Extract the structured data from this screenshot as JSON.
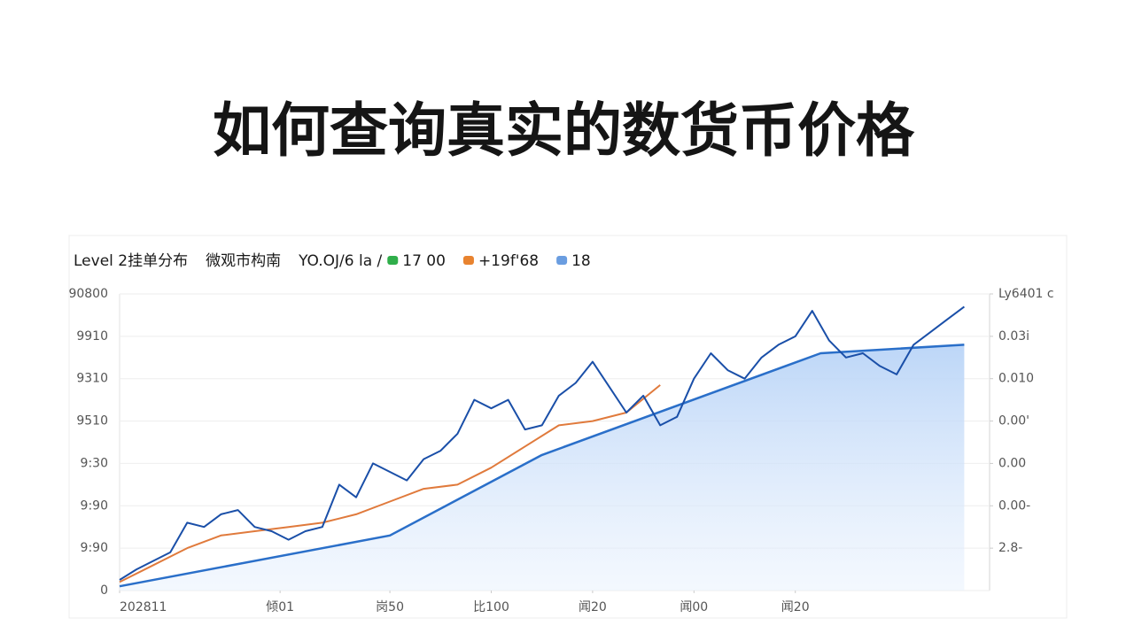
{
  "chart_data": {
    "type": "line",
    "title": "如何查询真实的数货币价格",
    "header": [
      "Level 2挂单分布",
      "微观市构南",
      "YO.OJ/6 la /"
    ],
    "legend": [
      {
        "label": "17  00",
        "color": "#2fae4a"
      },
      {
        "label": "+19f'68",
        "color": "#e8832f"
      },
      {
        "label": "18",
        "color": "#6a9de0"
      }
    ],
    "xlim": [
      0,
      103
    ],
    "xticks": [
      {
        "value": 0,
        "label": "202811"
      },
      {
        "value": 19,
        "label": "倾01"
      },
      {
        "value": 32,
        "label": "岗50"
      },
      {
        "value": 44,
        "label": "比100"
      },
      {
        "value": 56,
        "label": "闻20"
      },
      {
        "value": 68,
        "label": "闻00"
      },
      {
        "value": 80,
        "label": "闻20"
      }
    ],
    "ylim": [
      0,
      7
    ],
    "yticks": [
      {
        "value": 0,
        "label": "0"
      },
      {
        "value": 1,
        "label": "9:90"
      },
      {
        "value": 2,
        "label": "9:90"
      },
      {
        "value": 3,
        "label": "9:30"
      },
      {
        "value": 4,
        "label": "9510"
      },
      {
        "value": 5,
        "label": "9310"
      },
      {
        "value": 6,
        "label": "9910"
      },
      {
        "value": 7,
        "label": "90800"
      }
    ],
    "y2lim": [
      0,
      7
    ],
    "y2ticks": [
      {
        "value": 1,
        "label": "2.8-"
      },
      {
        "value": 2,
        "label": "0.00-"
      },
      {
        "value": 3,
        "label": "0.00"
      },
      {
        "value": 4,
        "label": "0.00'"
      },
      {
        "value": 5,
        "label": "0.010"
      },
      {
        "value": 6,
        "label": "0.03i"
      },
      {
        "value": 7,
        "label": "Ly6401 c"
      }
    ],
    "grid": true,
    "series": [
      {
        "name": null,
        "color": "#2a6fc9",
        "fill": true,
        "x": [
          0,
          32,
          50,
          83,
          100
        ],
        "values": [
          0.1,
          1.3,
          3.2,
          5.6,
          5.8
        ]
      },
      {
        "name": null,
        "color": "#e07a3c",
        "fill": false,
        "x": [
          0,
          4,
          8,
          12,
          16,
          20,
          24,
          28,
          32,
          36,
          40,
          44,
          48,
          52,
          56,
          60,
          64
        ],
        "values": [
          0.2,
          0.6,
          1.0,
          1.3,
          1.4,
          1.5,
          1.6,
          1.8,
          2.1,
          2.4,
          2.5,
          2.9,
          3.4,
          3.9,
          4.0,
          4.2,
          4.85
        ]
      },
      {
        "name": null,
        "color": "#1a4fa8",
        "fill": false,
        "x": [
          0,
          2,
          4,
          6,
          8,
          10,
          12,
          14,
          16,
          18,
          20,
          22,
          24,
          26,
          28,
          30,
          32,
          34,
          36,
          38,
          40,
          42,
          44,
          46,
          48,
          50,
          52,
          54,
          56,
          58,
          60,
          62,
          64,
          66,
          68,
          70,
          72,
          74,
          76,
          78,
          80,
          82,
          84,
          86,
          88,
          90,
          92,
          94,
          96,
          98,
          100
        ],
        "values": [
          0.25,
          0.5,
          0.7,
          0.9,
          1.6,
          1.5,
          1.8,
          1.9,
          1.5,
          1.4,
          1.2,
          1.4,
          1.5,
          2.5,
          2.2,
          3.0,
          2.8,
          2.6,
          3.1,
          3.3,
          3.7,
          4.5,
          4.3,
          4.5,
          3.8,
          3.9,
          4.6,
          4.9,
          5.4,
          4.8,
          4.2,
          4.6,
          3.9,
          4.1,
          5.0,
          5.6,
          5.2,
          5.0,
          5.5,
          5.8,
          6.0,
          6.6,
          5.9,
          5.5,
          5.6,
          5.3,
          5.1,
          5.8,
          6.1,
          6.4,
          6.7
        ]
      }
    ]
  }
}
